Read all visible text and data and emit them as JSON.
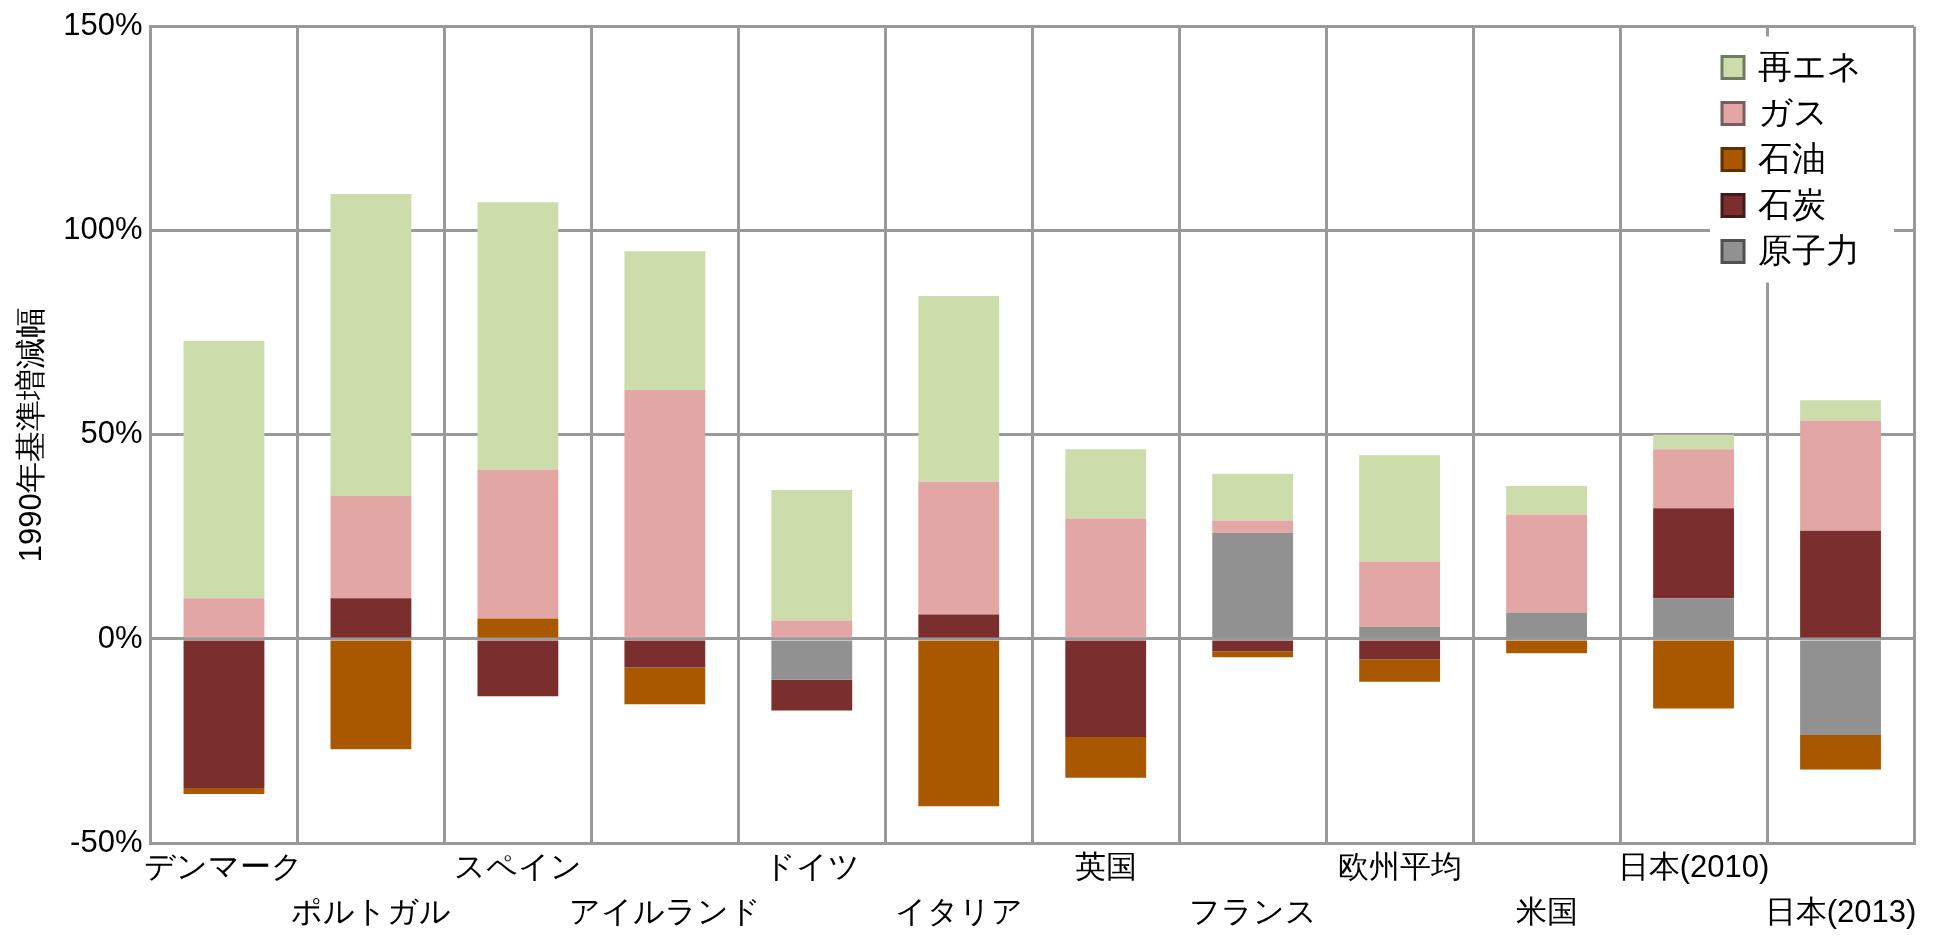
{
  "chart_data": {
    "type": "bar",
    "stacked": true,
    "ylabel": "1990年基準増減幅",
    "categories": [
      "デンマーク",
      "ポルトガル",
      "スペイン",
      "アイルランド",
      "ドイツ",
      "イタリア",
      "英国",
      "フランス",
      "欧州平均",
      "米国",
      "日本(2010)",
      "日本(2013)"
    ],
    "series": [
      {
        "name": "原子力",
        "color": "#919191",
        "values": [
          0,
          0,
          0,
          0,
          -10,
          0,
          0,
          26,
          3,
          6.5,
          10,
          -23.5
        ]
      },
      {
        "name": "石炭",
        "color": "#7a2f2e",
        "values": [
          -36.5,
          10,
          -14,
          -7,
          -7.5,
          6,
          -24,
          -3,
          -5,
          0,
          22,
          26.5
        ]
      },
      {
        "name": "石油",
        "color": "#aa5800",
        "values": [
          -1.5,
          -27,
          5,
          -9,
          0,
          -41,
          -10,
          -1.5,
          -5.5,
          -3.5,
          -17,
          -8.5
        ]
      },
      {
        "name": "ガス",
        "color": "#e2a7a5",
        "values": [
          10,
          25,
          36.5,
          61,
          4.5,
          32.5,
          29.5,
          3,
          16,
          24,
          14.5,
          27
        ]
      },
      {
        "name": "再エネ",
        "color": "#cddcab",
        "values": [
          63,
          74,
          65.5,
          34,
          32,
          45.5,
          17,
          11.5,
          26,
          7,
          3.5,
          5
        ]
      }
    ],
    "ylim": [
      -50,
      150
    ],
    "yticks": [
      {
        "value": -50,
        "label": "-50%"
      },
      {
        "value": 0,
        "label": "0%"
      },
      {
        "value": 50,
        "label": "50%"
      },
      {
        "value": 100,
        "label": "100%"
      },
      {
        "value": 150,
        "label": "150%"
      }
    ],
    "grid": true,
    "legend": "top right"
  }
}
